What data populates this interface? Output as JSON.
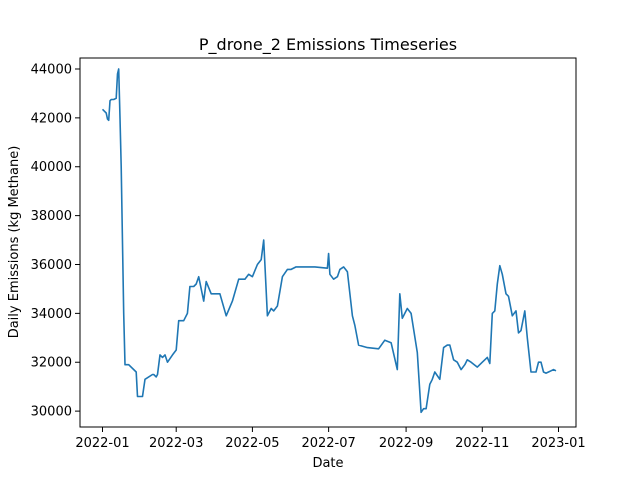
{
  "chart_data": {
    "type": "line",
    "title": "P_drone_2 Emissions Timeseries",
    "xlabel": "Date",
    "ylabel": "Daily Emissions (kg Methane)",
    "xlim": [
      "2021-12-14",
      "2023-01-15"
    ],
    "ylim": [
      29350,
      44450
    ],
    "x_ticks": [
      "2022-01-01",
      "2022-03-01",
      "2022-05-01",
      "2022-07-01",
      "2022-09-01",
      "2022-11-01",
      "2023-01-01"
    ],
    "x_tick_labels": [
      "2022-01",
      "2022-03",
      "2022-05",
      "2022-07",
      "2022-09",
      "2022-11",
      "2023-01"
    ],
    "y_ticks": [
      30000,
      32000,
      34000,
      36000,
      38000,
      40000,
      42000,
      44000
    ],
    "y_tick_labels": [
      "30000",
      "32000",
      "34000",
      "36000",
      "38000",
      "40000",
      "42000",
      "44000"
    ],
    "grid": false,
    "line_color": "#1f77b4",
    "series": [
      {
        "x": [
          "2022-01-01",
          "2022-01-03",
          "2022-01-04",
          "2022-01-05",
          "2022-01-06",
          "2022-01-07",
          "2022-01-08",
          "2022-01-10",
          "2022-01-12",
          "2022-01-13",
          "2022-01-14",
          "2022-01-15",
          "2022-01-16",
          "2022-01-18",
          "2022-01-19",
          "2022-01-21",
          "2022-01-22",
          "2022-01-28",
          "2022-01-29",
          "2022-01-31",
          "2022-02-02",
          "2022-02-04",
          "2022-02-10",
          "2022-02-11",
          "2022-02-13",
          "2022-02-14",
          "2022-02-16",
          "2022-02-18",
          "2022-02-20",
          "2022-02-22",
          "2022-02-26",
          "2022-03-01",
          "2022-03-03",
          "2022-03-07",
          "2022-03-10",
          "2022-03-12",
          "2022-03-15",
          "2022-03-17",
          "2022-03-19",
          "2022-03-23",
          "2022-03-25",
          "2022-03-29",
          "2022-04-05",
          "2022-04-10",
          "2022-04-15",
          "2022-04-20",
          "2022-04-25",
          "2022-04-28",
          "2022-05-01",
          "2022-05-05",
          "2022-05-08",
          "2022-05-10",
          "2022-05-11",
          "2022-05-13",
          "2022-05-16",
          "2022-05-18",
          "2022-05-21",
          "2022-05-25",
          "2022-05-29",
          "2022-06-01",
          "2022-06-05",
          "2022-06-10",
          "2022-06-20",
          "2022-06-30",
          "2022-07-01",
          "2022-07-02",
          "2022-07-05",
          "2022-07-08",
          "2022-07-10",
          "2022-07-13",
          "2022-07-16",
          "2022-07-18",
          "2022-07-20",
          "2022-07-22",
          "2022-07-25",
          "2022-08-01",
          "2022-08-10",
          "2022-08-15",
          "2022-08-20",
          "2022-08-25",
          "2022-08-27",
          "2022-08-29",
          "2022-08-30",
          "2022-08-31",
          "2022-09-02",
          "2022-09-05",
          "2022-09-10",
          "2022-09-13",
          "2022-09-15",
          "2022-09-17",
          "2022-09-20",
          "2022-09-21",
          "2022-09-22",
          "2022-09-24",
          "2022-09-28",
          "2022-10-01",
          "2022-10-04",
          "2022-10-06",
          "2022-10-09",
          "2022-10-12",
          "2022-10-15",
          "2022-10-18",
          "2022-10-20",
          "2022-10-23",
          "2022-10-28",
          "2022-11-01",
          "2022-11-05",
          "2022-11-07",
          "2022-11-09",
          "2022-11-11",
          "2022-11-13",
          "2022-11-15",
          "2022-11-17",
          "2022-11-20",
          "2022-11-22",
          "2022-11-25",
          "2022-11-28",
          "2022-11-30",
          "2022-12-02",
          "2022-12-05",
          "2022-12-07",
          "2022-12-10",
          "2022-12-12",
          "2022-12-14",
          "2022-12-16",
          "2022-12-18",
          "2022-12-20",
          "2022-12-22",
          "2022-12-24",
          "2022-12-26",
          "2022-12-28",
          "2022-12-30"
        ],
        "values": [
          42350,
          42250,
          42200,
          41950,
          41900,
          42700,
          42750,
          42750,
          42800,
          43800,
          44000,
          42000,
          40000,
          34000,
          31900,
          31900,
          31900,
          31600,
          30600,
          30600,
          30600,
          31300,
          31500,
          31500,
          31400,
          31500,
          32300,
          32200,
          32300,
          32000,
          32300,
          32500,
          33700,
          33700,
          34000,
          35100,
          35100,
          35200,
          35500,
          34500,
          35300,
          34800,
          34800,
          33900,
          34500,
          35400,
          35400,
          35600,
          35500,
          36000,
          36200,
          37000,
          36000,
          33900,
          34200,
          34100,
          34300,
          35500,
          35800,
          35800,
          35900,
          35900,
          35900,
          35850,
          36450,
          35600,
          35400,
          35500,
          35800,
          35900,
          35700,
          34800,
          33900,
          33500,
          32700,
          32600,
          32550,
          32900,
          32800,
          31700,
          34800,
          33800,
          33900,
          34000,
          34200,
          34000,
          32400,
          29950,
          30100,
          30100,
          31100,
          31200,
          31300,
          31600,
          31300,
          32600,
          32700,
          32700,
          32100,
          32000,
          31700,
          31900,
          32100,
          32000,
          31800,
          32000,
          32200,
          31950,
          34000,
          34100,
          35200,
          35950,
          35600,
          34800,
          34700,
          33900,
          34100,
          33200,
          33300,
          34100,
          33000,
          31600,
          31600,
          31600,
          32000,
          32000,
          31600,
          31550,
          31600,
          31650,
          31700,
          31650
        ]
      }
    ]
  }
}
